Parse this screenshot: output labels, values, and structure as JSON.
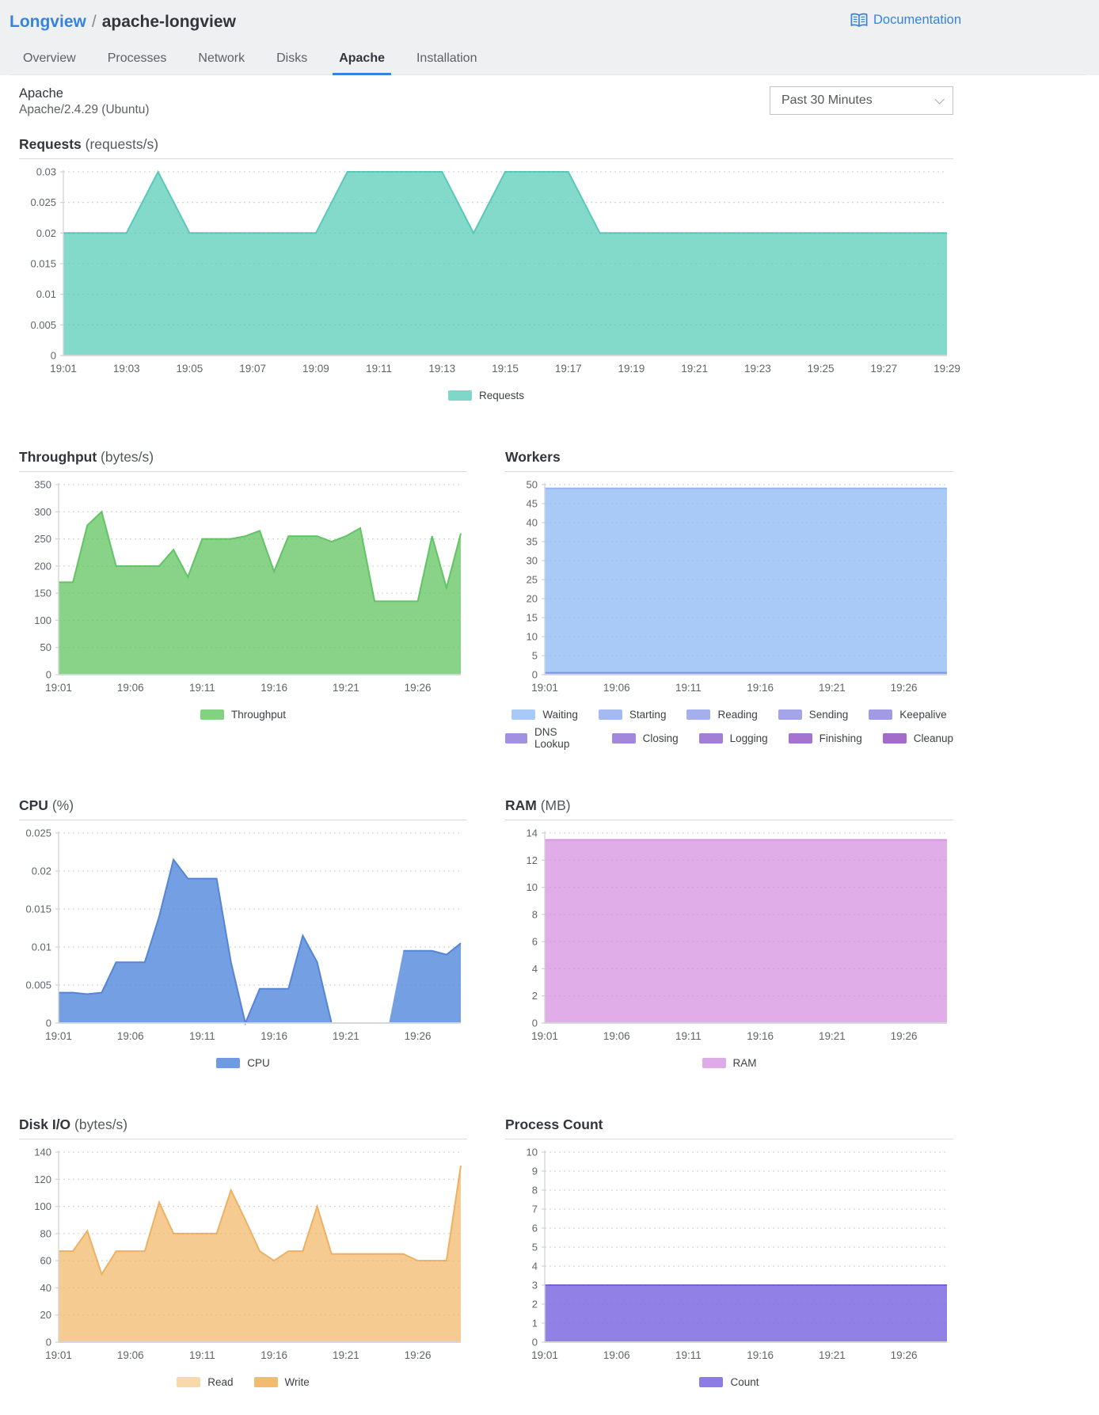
{
  "page": {
    "background": "#eff0f1",
    "panel_background": "#ffffff",
    "accent_blue": "#3683dc",
    "text_dark": "#32363c",
    "text_gray": "#5e6065"
  },
  "header": {
    "breadcrumb": {
      "parent": "Longview",
      "separator": "/",
      "current": "apache-longview"
    },
    "documentation_label": "Documentation"
  },
  "tabs": [
    {
      "label": "Overview",
      "active": false
    },
    {
      "label": "Processes",
      "active": false
    },
    {
      "label": "Network",
      "active": false
    },
    {
      "label": "Disks",
      "active": false
    },
    {
      "label": "Apache",
      "active": true
    },
    {
      "label": "Installation",
      "active": false
    }
  ],
  "section": {
    "title": "Apache",
    "subtitle": "Apache/2.4.29 (Ubuntu)",
    "time_range_selected": "Past 30 Minutes"
  },
  "chart_data": [
    {
      "id": "requests",
      "type": "area",
      "layout": "full",
      "title": "Requests",
      "unit": "(requests/s)",
      "xlabel": "",
      "ylabel": "requests/s",
      "ylim": [
        0,
        0.03
      ],
      "yticks": [
        0,
        0.005,
        0.01,
        0.015,
        0.02,
        0.025,
        0.03
      ],
      "grid": "dotted-horizontal",
      "legend_position": "bottom",
      "x_span_minutes": 28,
      "x_ticks": [
        {
          "m": 0,
          "label": "19:01"
        },
        {
          "m": 2,
          "label": "19:03"
        },
        {
          "m": 4,
          "label": "19:05"
        },
        {
          "m": 6,
          "label": "19:07"
        },
        {
          "m": 8,
          "label": "19:09"
        },
        {
          "m": 10,
          "label": "19:11"
        },
        {
          "m": 12,
          "label": "19:13"
        },
        {
          "m": 14,
          "label": "19:15"
        },
        {
          "m": 16,
          "label": "19:17"
        },
        {
          "m": 18,
          "label": "19:19"
        },
        {
          "m": 20,
          "label": "19:21"
        },
        {
          "m": 22,
          "label": "19:23"
        },
        {
          "m": 24,
          "label": "19:25"
        },
        {
          "m": 26,
          "label": "19:27"
        },
        {
          "m": 28,
          "label": "19:29"
        }
      ],
      "series": [
        {
          "name": "Requests",
          "fill": "#7ed7c8",
          "stroke": "#5ac9b8",
          "values": [
            0.02,
            0.02,
            0.02,
            0.03,
            0.02,
            0.02,
            0.02,
            0.02,
            0.02,
            0.03,
            0.03,
            0.03,
            0.03,
            0.02,
            0.03,
            0.03,
            0.03,
            0.02,
            0.02,
            0.02,
            0.02,
            0.02,
            0.02,
            0.02,
            0.02,
            0.02,
            0.02,
            0.02,
            0.02
          ]
        }
      ],
      "legend_rows": [
        [
          {
            "label": "Requests",
            "color": "#7ed7c8"
          }
        ]
      ]
    },
    {
      "id": "throughput",
      "type": "area",
      "layout": "half",
      "title": "Throughput",
      "unit": "(bytes/s)",
      "xlabel": "",
      "ylabel": "bytes/s",
      "ylim": [
        0,
        350
      ],
      "yticks": [
        0,
        50,
        100,
        150,
        200,
        250,
        300,
        350
      ],
      "grid": "dotted-horizontal",
      "legend_position": "bottom",
      "x_span_minutes": 28,
      "x_ticks": [
        {
          "m": 0,
          "label": "19:01"
        },
        {
          "m": 5,
          "label": "19:06"
        },
        {
          "m": 10,
          "label": "19:11"
        },
        {
          "m": 15,
          "label": "19:16"
        },
        {
          "m": 20,
          "label": "19:21"
        },
        {
          "m": 25,
          "label": "19:26"
        }
      ],
      "series": [
        {
          "name": "Throughput",
          "fill": "#83d183",
          "stroke": "#62c464",
          "values": [
            170,
            170,
            275,
            300,
            200,
            200,
            200,
            200,
            230,
            180,
            250,
            250,
            250,
            255,
            265,
            190,
            255,
            255,
            255,
            245,
            255,
            270,
            135,
            135,
            135,
            135,
            255,
            160,
            260
          ]
        }
      ],
      "legend_rows": [
        [
          {
            "label": "Throughput",
            "color": "#83d183"
          }
        ]
      ]
    },
    {
      "id": "workers",
      "type": "area",
      "layout": "half",
      "title": "Workers",
      "unit": "",
      "xlabel": "",
      "ylabel": "workers",
      "ylim": [
        0,
        50
      ],
      "yticks": [
        0,
        5,
        10,
        15,
        20,
        25,
        30,
        35,
        40,
        45,
        50
      ],
      "grid": "dotted-horizontal",
      "legend_position": "bottom",
      "x_span_minutes": 28,
      "x_ticks": [
        {
          "m": 0,
          "label": "19:01"
        },
        {
          "m": 5,
          "label": "19:06"
        },
        {
          "m": 10,
          "label": "19:11"
        },
        {
          "m": 15,
          "label": "19:16"
        },
        {
          "m": 20,
          "label": "19:21"
        },
        {
          "m": 25,
          "label": "19:26"
        }
      ],
      "series": [
        {
          "name": "Waiting",
          "fill": "#a6c8f7",
          "stroke": "#94b7f2",
          "constant": 49
        },
        {
          "name": "Starting",
          "fill": "#a5baf1",
          "stroke": "#7e9ae6",
          "constant": 0.5
        },
        {
          "name": "Reading",
          "fill": "#a4afed",
          "stroke": "#a4afed",
          "constant": 0
        },
        {
          "name": "Sending",
          "fill": "#a4a5e9",
          "stroke": "#a4a5e9",
          "constant": 0
        },
        {
          "name": "Keepalive",
          "fill": "#a29ae5",
          "stroke": "#a29ae5",
          "constant": 0
        },
        {
          "name": "DNS Lookup",
          "fill": "#a290e1",
          "stroke": "#a290e1",
          "constant": 0
        },
        {
          "name": "Closing",
          "fill": "#a287dc",
          "stroke": "#a287dc",
          "constant": 0
        },
        {
          "name": "Logging",
          "fill": "#a37ed7",
          "stroke": "#a37ed7",
          "constant": 0
        },
        {
          "name": "Finishing",
          "fill": "#a574d1",
          "stroke": "#a574d1",
          "constant": 0
        },
        {
          "name": "Cleanup",
          "fill": "#a46bcb",
          "stroke": "#a46bcb",
          "constant": 0
        }
      ],
      "legend_rows": [
        [
          {
            "label": "Waiting",
            "color": "#a9c9f6"
          },
          {
            "label": "Starting",
            "color": "#a5baf1"
          },
          {
            "label": "Reading",
            "color": "#a4afed"
          },
          {
            "label": "Sending",
            "color": "#a4a5e9"
          },
          {
            "label": "Keepalive",
            "color": "#a29ae5"
          }
        ],
        [
          {
            "label": "DNS Lookup",
            "color": "#a290e1"
          },
          {
            "label": "Closing",
            "color": "#a287dc"
          },
          {
            "label": "Logging",
            "color": "#a37ed7"
          },
          {
            "label": "Finishing",
            "color": "#a574d1"
          },
          {
            "label": "Cleanup",
            "color": "#a46bcb"
          }
        ]
      ]
    },
    {
      "id": "cpu",
      "type": "area",
      "layout": "half",
      "title": "CPU",
      "unit": "(%)",
      "xlabel": "",
      "ylabel": "%",
      "ylim": [
        0,
        0.025
      ],
      "yticks": [
        0,
        0.005,
        0.01,
        0.015,
        0.02,
        0.025
      ],
      "grid": "dotted-horizontal",
      "legend_position": "bottom",
      "x_span_minutes": 28,
      "x_ticks": [
        {
          "m": 0,
          "label": "19:01"
        },
        {
          "m": 5,
          "label": "19:06"
        },
        {
          "m": 10,
          "label": "19:11"
        },
        {
          "m": 15,
          "label": "19:16"
        },
        {
          "m": 20,
          "label": "19:21"
        },
        {
          "m": 25,
          "label": "19:26"
        }
      ],
      "series": [
        {
          "name": "CPU",
          "fill": "#6e9be2",
          "stroke": "#5585d6",
          "values": [
            0.004,
            0.004,
            0.0038,
            0.004,
            0.008,
            0.008,
            0.008,
            0.014,
            0.0215,
            0.019,
            0.019,
            0.019,
            0.008,
            0,
            0.0045,
            0.0045,
            0.0045,
            0.0115,
            0.008,
            0,
            0,
            0,
            0,
            0,
            0.0095,
            0.0095,
            0.0095,
            0.009,
            0.0105
          ]
        }
      ],
      "legend_rows": [
        [
          {
            "label": "CPU",
            "color": "#6e9be2"
          }
        ]
      ]
    },
    {
      "id": "ram",
      "type": "area",
      "layout": "half",
      "title": "RAM",
      "unit": "(MB)",
      "xlabel": "",
      "ylabel": "MB",
      "ylim": [
        0,
        14
      ],
      "yticks": [
        0,
        2,
        4,
        6,
        8,
        10,
        12,
        14
      ],
      "grid": "dotted-horizontal",
      "legend_position": "bottom",
      "x_span_minutes": 28,
      "x_ticks": [
        {
          "m": 0,
          "label": "19:01"
        },
        {
          "m": 5,
          "label": "19:06"
        },
        {
          "m": 10,
          "label": "19:11"
        },
        {
          "m": 15,
          "label": "19:16"
        },
        {
          "m": 20,
          "label": "19:21"
        },
        {
          "m": 25,
          "label": "19:26"
        }
      ],
      "series": [
        {
          "name": "RAM",
          "fill": "#dfaae8",
          "stroke": "#d795e2",
          "constant": 13.5
        }
      ],
      "legend_rows": [
        [
          {
            "label": "RAM",
            "color": "#dfaae8"
          }
        ]
      ]
    },
    {
      "id": "diskio",
      "type": "area",
      "layout": "half",
      "title": "Disk I/O",
      "unit": "(bytes/s)",
      "xlabel": "",
      "ylabel": "bytes/s",
      "ylim": [
        0,
        140
      ],
      "yticks": [
        0,
        20,
        40,
        60,
        80,
        100,
        120,
        140
      ],
      "grid": "dotted-horizontal",
      "legend_position": "bottom",
      "x_span_minutes": 28,
      "x_ticks": [
        {
          "m": 0,
          "label": "19:01"
        },
        {
          "m": 5,
          "label": "19:06"
        },
        {
          "m": 10,
          "label": "19:11"
        },
        {
          "m": 15,
          "label": "19:16"
        },
        {
          "m": 20,
          "label": "19:21"
        },
        {
          "m": 25,
          "label": "19:26"
        }
      ],
      "series": [
        {
          "name": "Read",
          "fill": "#f8d9a9",
          "stroke": "#f8d9a9",
          "constant": 0
        },
        {
          "name": "Write",
          "fill": "#f6c98d",
          "stroke": "#eeb163",
          "values": [
            67,
            67,
            82,
            50,
            67,
            67,
            67,
            103,
            80,
            80,
            80,
            80,
            112,
            90,
            67,
            60,
            67,
            67,
            100,
            65,
            65,
            65,
            65,
            65,
            65,
            60,
            60,
            60,
            130
          ]
        }
      ],
      "legend_rows": [
        [
          {
            "label": "Read",
            "color": "#f8d9a9"
          },
          {
            "label": "Write",
            "color": "#f2bb6e"
          }
        ]
      ]
    },
    {
      "id": "process-count",
      "type": "area",
      "layout": "half",
      "title": "Process Count",
      "unit": "",
      "xlabel": "",
      "ylabel": "count",
      "ylim": [
        0,
        10
      ],
      "yticks": [
        0,
        1,
        2,
        3,
        4,
        5,
        6,
        7,
        8,
        9,
        10
      ],
      "grid": "dotted-horizontal",
      "legend_position": "bottom",
      "x_span_minutes": 28,
      "x_ticks": [
        {
          "m": 0,
          "label": "19:01"
        },
        {
          "m": 5,
          "label": "19:06"
        },
        {
          "m": 10,
          "label": "19:11"
        },
        {
          "m": 15,
          "label": "19:16"
        },
        {
          "m": 20,
          "label": "19:21"
        },
        {
          "m": 25,
          "label": "19:26"
        }
      ],
      "series": [
        {
          "name": "Count",
          "fill": "#8c7ce6",
          "stroke": "#7463da",
          "constant": 3
        }
      ],
      "legend_rows": [
        [
          {
            "label": "Count",
            "color": "#8c7ce6"
          }
        ]
      ]
    }
  ]
}
